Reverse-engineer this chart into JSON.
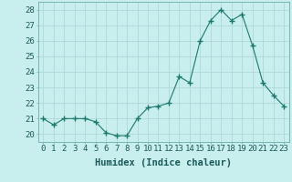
{
  "x": [
    0,
    1,
    2,
    3,
    4,
    5,
    6,
    7,
    8,
    9,
    10,
    11,
    12,
    13,
    14,
    15,
    16,
    17,
    18,
    19,
    20,
    21,
    22,
    23
  ],
  "y": [
    21.0,
    20.6,
    21.0,
    21.0,
    21.0,
    20.8,
    20.1,
    19.9,
    19.9,
    21.0,
    21.7,
    21.8,
    22.0,
    23.7,
    23.3,
    26.0,
    27.3,
    28.0,
    27.3,
    27.7,
    25.7,
    23.3,
    22.5,
    21.8
  ],
  "xlabel": "Humidex (Indice chaleur)",
  "xlim": [
    -0.5,
    23.5
  ],
  "ylim": [
    19.5,
    28.5
  ],
  "yticks": [
    20,
    21,
    22,
    23,
    24,
    25,
    26,
    27,
    28
  ],
  "xticks": [
    0,
    1,
    2,
    3,
    4,
    5,
    6,
    7,
    8,
    9,
    10,
    11,
    12,
    13,
    14,
    15,
    16,
    17,
    18,
    19,
    20,
    21,
    22,
    23
  ],
  "line_color": "#1a7a6e",
  "marker": "+",
  "marker_size": 4,
  "bg_color": "#c8eeee",
  "grid_color": "#b0d8d8",
  "xlabel_fontsize": 7.5,
  "tick_fontsize": 6.5
}
